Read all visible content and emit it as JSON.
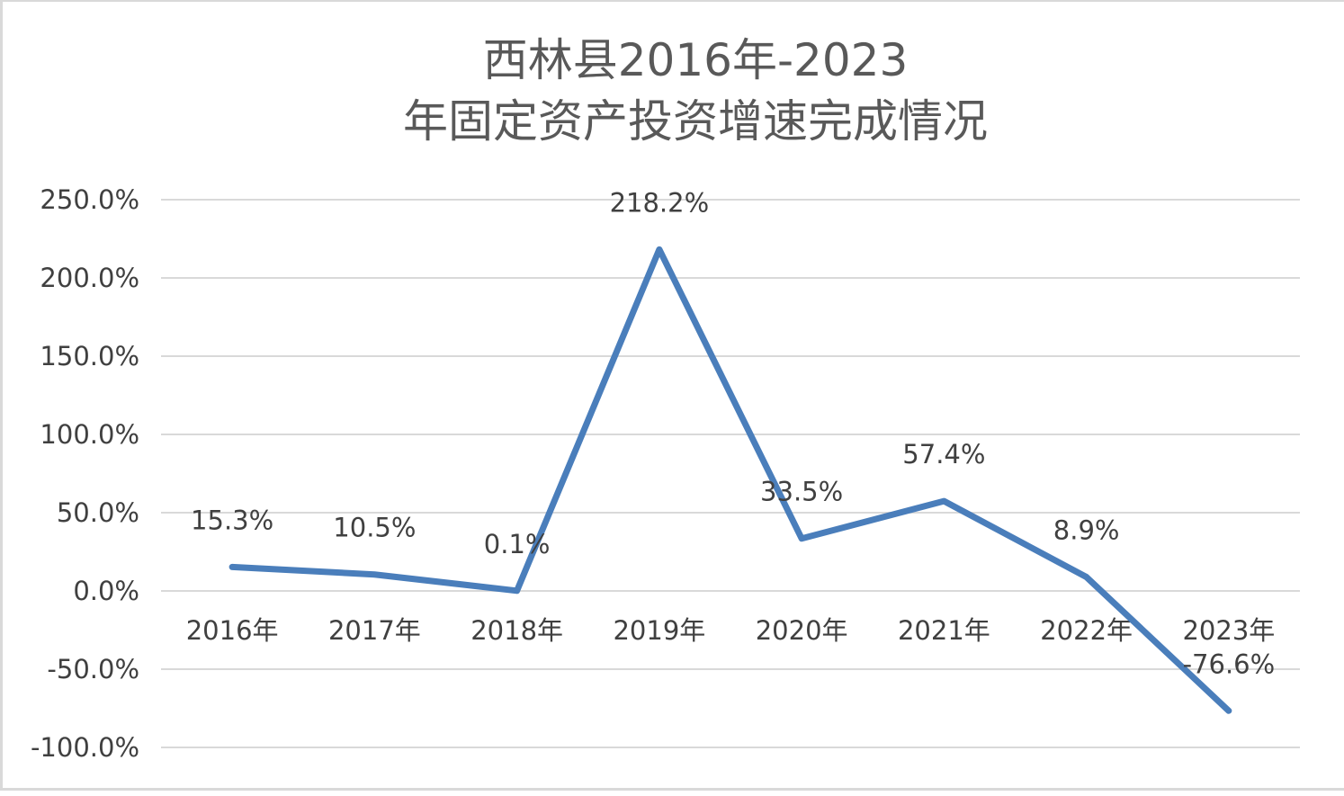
{
  "chart_data": {
    "type": "line",
    "title_lines": [
      "西林县2016年-2023",
      "年固定资产投资增速完成情况"
    ],
    "categories": [
      "2016年",
      "2017年",
      "2018年",
      "2019年",
      "2020年",
      "2021年",
      "2022年",
      "2023年"
    ],
    "series": [
      {
        "values": [
          15.3,
          10.5,
          0.1,
          218.2,
          33.5,
          57.4,
          8.9,
          -76.6
        ],
        "data_labels": [
          "15.3%",
          "10.5%",
          "0.1%",
          "218.2%",
          "33.5%",
          "57.4%",
          "8.9%",
          "-76.6%"
        ],
        "color": "#4a7ebb"
      }
    ],
    "y_ticks": [
      250,
      200,
      150,
      100,
      50,
      0,
      -50,
      -100
    ],
    "y_tick_labels": [
      "250.0%",
      "200.0%",
      "150.0%",
      "100.0%",
      "50.0%",
      "0.0%",
      "-50.0%",
      "-100.0%"
    ],
    "ylim": [
      -100,
      250
    ],
    "grid": true,
    "legend": "none",
    "colors": {
      "line": "#4a7ebb",
      "grid": "#d9d9d9",
      "text": "#404040",
      "title": "#595959"
    }
  }
}
